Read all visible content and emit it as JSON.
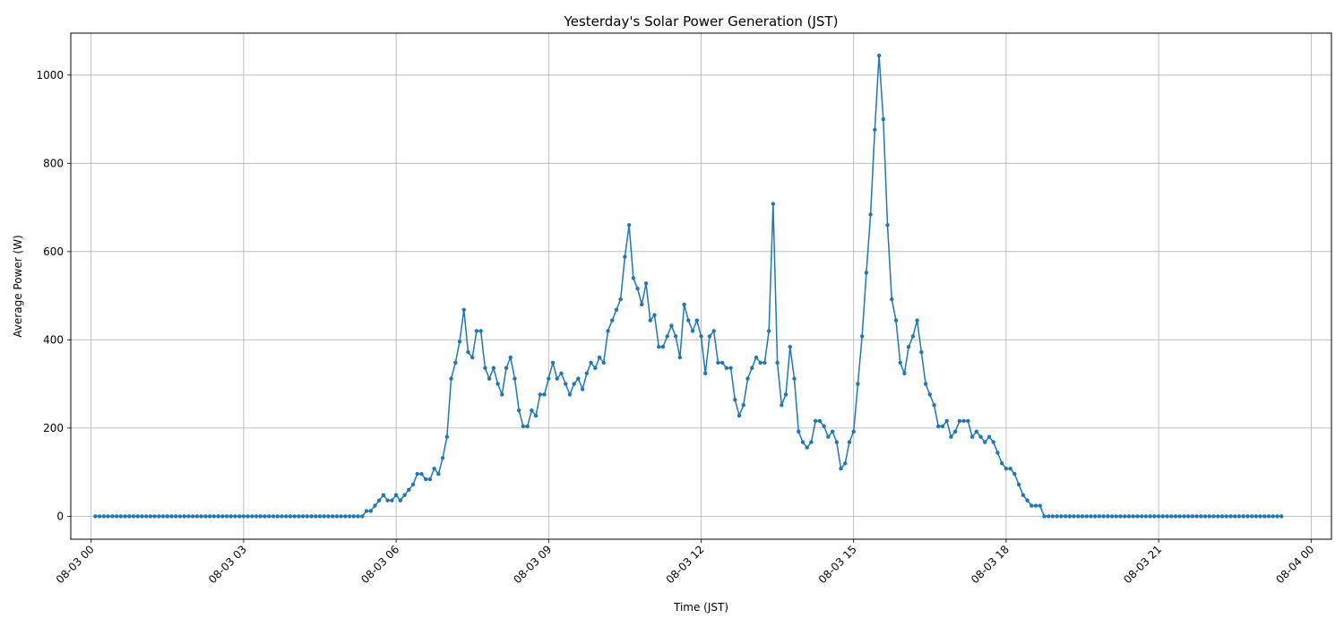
{
  "chart_data": {
    "type": "line",
    "title": "Yesterday's Solar Power Generation (JST)",
    "xlabel": "Time (JST)",
    "ylabel": "Average Power (W)",
    "xlim": [
      "2025-08-02 23:36",
      "2025-08-04 00:24"
    ],
    "ylim": [
      -52,
      1095
    ],
    "grid": true,
    "line_color": "#1f77b4",
    "x_ticks": [
      {
        "t": "2025-08-03 00:00",
        "label": "08-03 00"
      },
      {
        "t": "2025-08-03 03:00",
        "label": "08-03 03"
      },
      {
        "t": "2025-08-03 06:00",
        "label": "08-03 06"
      },
      {
        "t": "2025-08-03 09:00",
        "label": "08-03 09"
      },
      {
        "t": "2025-08-03 12:00",
        "label": "08-03 12"
      },
      {
        "t": "2025-08-03 15:00",
        "label": "08-03 15"
      },
      {
        "t": "2025-08-03 18:00",
        "label": "08-03 18"
      },
      {
        "t": "2025-08-03 21:00",
        "label": "08-03 21"
      },
      {
        "t": "2025-08-04 00:00",
        "label": "08-04 00"
      }
    ],
    "y_ticks": [
      0,
      200,
      400,
      600,
      800,
      1000
    ],
    "series": [
      {
        "start": "2025-08-03 00:05",
        "interval_minutes": 5,
        "values": [
          0,
          0,
          0,
          0,
          0,
          0,
          0,
          0,
          0,
          0,
          0,
          0,
          0,
          0,
          0,
          0,
          0,
          0,
          0,
          0,
          0,
          0,
          0,
          0,
          0,
          0,
          0,
          0,
          0,
          0,
          0,
          0,
          0,
          0,
          0,
          0,
          0,
          0,
          0,
          0,
          0,
          0,
          0,
          0,
          0,
          0,
          0,
          0,
          0,
          0,
          0,
          0,
          0,
          0,
          0,
          0,
          0,
          0,
          0,
          0,
          0,
          0,
          0,
          0,
          12,
          12,
          24,
          36,
          48,
          36,
          36,
          48,
          36,
          48,
          60,
          72,
          96,
          96,
          84,
          84,
          108,
          96,
          132,
          180,
          312,
          348,
          396,
          468,
          372,
          360,
          420,
          420,
          336,
          312,
          336,
          300,
          276,
          336,
          360,
          312,
          240,
          204,
          204,
          240,
          228,
          276,
          276,
          312,
          348,
          312,
          324,
          300,
          276,
          300,
          312,
          288,
          324,
          348,
          336,
          360,
          348,
          420,
          444,
          468,
          492,
          588,
          660,
          540,
          516,
          480,
          528,
          444,
          456,
          384,
          384,
          408,
          432,
          408,
          360,
          480,
          444,
          420,
          444,
          408,
          324,
          408,
          420,
          348,
          348,
          336,
          336,
          264,
          228,
          252,
          312,
          336,
          360,
          348,
          348,
          420,
          708,
          348,
          252,
          276,
          384,
          312,
          192,
          168,
          156,
          168,
          216,
          216,
          204,
          180,
          192,
          168,
          108,
          120,
          168,
          192,
          300,
          408,
          552,
          684,
          876,
          1044,
          900,
          660,
          492,
          444,
          348,
          324,
          384,
          408,
          444,
          372,
          300,
          276,
          252,
          204,
          204,
          216,
          180,
          192,
          216,
          216,
          216,
          180,
          192,
          180,
          168,
          180,
          168,
          144,
          120,
          108,
          108,
          96,
          72,
          48,
          36,
          24,
          24,
          24,
          0,
          0,
          0,
          0,
          0,
          0,
          0,
          0,
          0,
          0,
          0,
          0,
          0,
          0,
          0,
          0,
          0,
          0,
          0,
          0,
          0,
          0,
          0,
          0,
          0,
          0,
          0,
          0,
          0,
          0,
          0,
          0,
          0,
          0,
          0,
          0,
          0,
          0,
          0,
          0,
          0,
          0,
          0,
          0,
          0,
          0,
          0,
          0,
          0,
          0,
          0,
          0,
          0,
          0,
          0,
          0,
          0
        ]
      }
    ]
  }
}
